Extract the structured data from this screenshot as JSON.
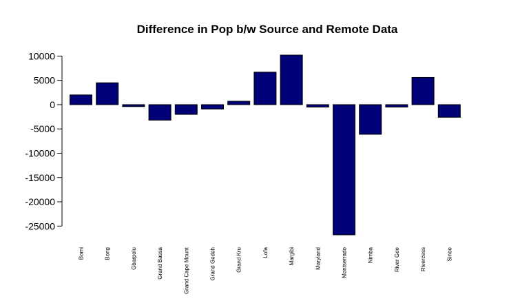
{
  "chart_data": {
    "type": "bar",
    "title": "Difference in Pop b/w Source and Remote Data",
    "xlabel": "",
    "ylabel": "",
    "categories": [
      "Bomi",
      "Bong",
      "Gbarpolu",
      "Grand Bassa",
      "Grand Cape Mount",
      "Grand Gedeh",
      "Grand Kru",
      "Lofa",
      "Margibi",
      "Maryland",
      "Montserrado",
      "Nimba",
      "River Gee",
      "Rivercess",
      "Sinoe"
    ],
    "values": [
      2000,
      4500,
      -400,
      -3200,
      -2000,
      -900,
      700,
      6700,
      10200,
      -500,
      -26800,
      -6100,
      -500,
      5600,
      -2600
    ],
    "yticks": [
      10000,
      5000,
      0,
      -5000,
      -10000,
      -15000,
      -20000,
      -25000
    ],
    "ylim": [
      -26800,
      10200
    ],
    "bar_color": "#000077",
    "grid": false
  }
}
